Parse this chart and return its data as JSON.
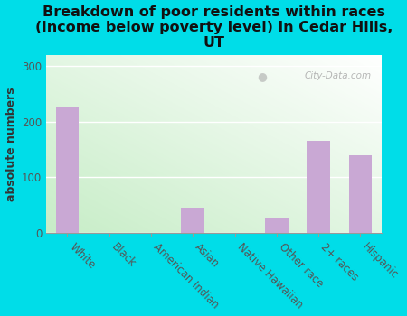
{
  "categories": [
    "White",
    "Black",
    "American Indian",
    "Asian",
    "Native Hawaiian",
    "Other race",
    "2+ races",
    "Hispanic"
  ],
  "values": [
    225,
    0,
    0,
    45,
    0,
    28,
    165,
    140
  ],
  "bar_color": "#c9a8d4",
  "title": "Breakdown of poor residents within races\n(income below poverty level) in Cedar Hills,\nUT",
  "ylabel": "absolute numbers",
  "ylim": [
    0,
    320
  ],
  "yticks": [
    0,
    100,
    200,
    300
  ],
  "background_color": "#00dde8",
  "plot_bg_top_right": "#f0f5e8",
  "plot_bg_bottom_left": "#c8ecd4",
  "watermark": "City-Data.com",
  "title_fontsize": 11.5,
  "ylabel_fontsize": 9,
  "tick_fontsize": 8.5
}
